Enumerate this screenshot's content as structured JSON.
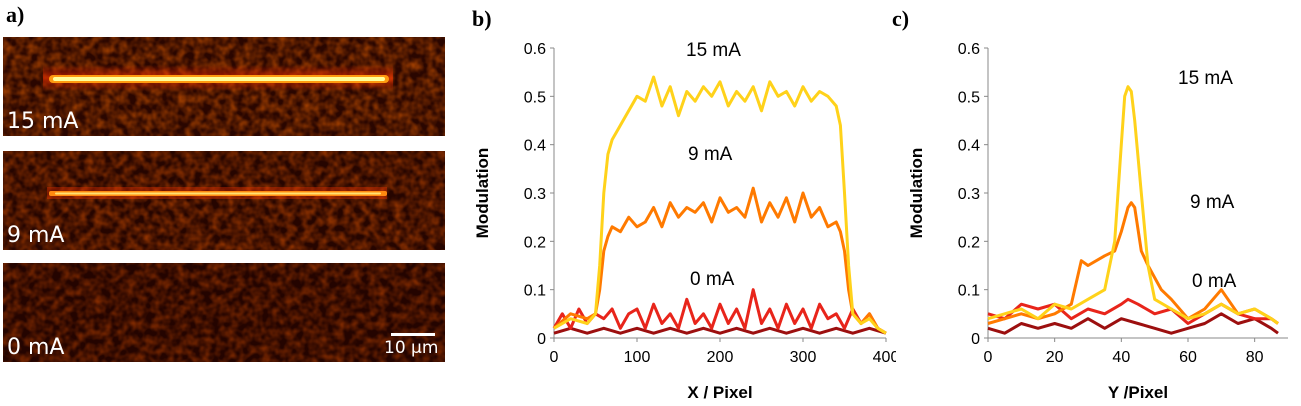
{
  "panel_a": {
    "letter": "a)",
    "images": [
      {
        "label": "15 mA",
        "intensity": 1.0
      },
      {
        "label": "9 mA",
        "intensity": 0.6
      },
      {
        "label": "0 mA",
        "intensity": 0.0
      }
    ],
    "scale_bar": "10 µm"
  },
  "chart_data": [
    {
      "letter": "b)",
      "type": "line",
      "xlabel": "X / Pixel",
      "ylabel": "Modulation",
      "xlim": [
        0,
        400
      ],
      "ylim": [
        0,
        0.6
      ],
      "xticks": [
        "0",
        "100",
        "200",
        "300",
        "400"
      ],
      "yticks": [
        "0",
        "0.1",
        "0.2",
        "0.3",
        "0.4",
        "0.5",
        "0.6"
      ],
      "grid": false,
      "annotations": [
        "15 mA",
        "9 mA",
        "0 mA"
      ],
      "series": [
        {
          "color": "#ffd21a",
          "x": [
            0,
            20,
            40,
            50,
            55,
            60,
            65,
            70,
            80,
            90,
            100,
            110,
            120,
            130,
            140,
            150,
            160,
            170,
            180,
            190,
            200,
            210,
            220,
            230,
            240,
            250,
            260,
            270,
            280,
            290,
            300,
            310,
            320,
            330,
            340,
            345,
            350,
            355,
            360,
            370,
            380,
            390,
            400
          ],
          "y": [
            0.02,
            0.04,
            0.03,
            0.05,
            0.15,
            0.3,
            0.38,
            0.41,
            0.44,
            0.47,
            0.5,
            0.49,
            0.54,
            0.48,
            0.52,
            0.46,
            0.51,
            0.49,
            0.52,
            0.5,
            0.53,
            0.48,
            0.51,
            0.49,
            0.52,
            0.47,
            0.53,
            0.5,
            0.51,
            0.48,
            0.52,
            0.49,
            0.51,
            0.5,
            0.48,
            0.44,
            0.3,
            0.15,
            0.05,
            0.03,
            0.04,
            0.02,
            0.01
          ]
        },
        {
          "color": "#ff7a00",
          "x": [
            0,
            20,
            40,
            50,
            55,
            60,
            65,
            70,
            80,
            90,
            100,
            110,
            120,
            130,
            140,
            150,
            160,
            170,
            180,
            190,
            200,
            210,
            220,
            230,
            240,
            250,
            260,
            270,
            280,
            290,
            300,
            310,
            320,
            330,
            340,
            345,
            350,
            355,
            360,
            370,
            380,
            390,
            400
          ],
          "y": [
            0.02,
            0.05,
            0.04,
            0.05,
            0.1,
            0.18,
            0.21,
            0.23,
            0.22,
            0.25,
            0.23,
            0.24,
            0.27,
            0.23,
            0.28,
            0.25,
            0.27,
            0.26,
            0.28,
            0.24,
            0.29,
            0.26,
            0.27,
            0.25,
            0.31,
            0.24,
            0.28,
            0.25,
            0.29,
            0.24,
            0.3,
            0.25,
            0.27,
            0.23,
            0.24,
            0.22,
            0.18,
            0.1,
            0.05,
            0.03,
            0.05,
            0.02,
            0.01
          ]
        },
        {
          "color": "#e8251b",
          "x": [
            0,
            10,
            20,
            30,
            40,
            50,
            60,
            70,
            80,
            90,
            100,
            110,
            120,
            130,
            140,
            150,
            160,
            170,
            180,
            190,
            200,
            210,
            220,
            230,
            240,
            250,
            260,
            270,
            280,
            290,
            300,
            310,
            320,
            330,
            340,
            350,
            360,
            370,
            380,
            390,
            400
          ],
          "y": [
            0.02,
            0.05,
            0.02,
            0.06,
            0.03,
            0.05,
            0.04,
            0.06,
            0.02,
            0.05,
            0.06,
            0.02,
            0.07,
            0.03,
            0.05,
            0.02,
            0.08,
            0.03,
            0.05,
            0.02,
            0.07,
            0.03,
            0.06,
            0.02,
            0.1,
            0.03,
            0.06,
            0.02,
            0.07,
            0.03,
            0.06,
            0.02,
            0.07,
            0.04,
            0.05,
            0.02,
            0.06,
            0.03,
            0.05,
            0.02,
            0.01
          ]
        },
        {
          "color": "#9c0f0f",
          "x": [
            0,
            20,
            40,
            60,
            80,
            100,
            120,
            140,
            160,
            180,
            200,
            220,
            240,
            260,
            280,
            300,
            320,
            340,
            360,
            380,
            400
          ],
          "y": [
            0.01,
            0.02,
            0.01,
            0.02,
            0.01,
            0.02,
            0.01,
            0.02,
            0.01,
            0.02,
            0.01,
            0.02,
            0.01,
            0.02,
            0.01,
            0.02,
            0.01,
            0.02,
            0.01,
            0.02,
            0.01
          ]
        }
      ]
    },
    {
      "letter": "c)",
      "type": "line",
      "xlabel": "Y /Pixel",
      "ylabel": "Modulation",
      "xlim": [
        0,
        90
      ],
      "ylim": [
        0,
        0.6
      ],
      "xticks": [
        "0",
        "20",
        "40",
        "60",
        "80"
      ],
      "yticks": [
        "0",
        "0.1",
        "0.2",
        "0.3",
        "0.4",
        "0.5",
        "0.6"
      ],
      "grid": false,
      "annotations": [
        "15 mA",
        "9 mA",
        "0 mA"
      ],
      "series": [
        {
          "color": "#ffd21a",
          "x": [
            0,
            5,
            10,
            15,
            20,
            25,
            30,
            35,
            38,
            40,
            41,
            42,
            43,
            44,
            46,
            48,
            50,
            55,
            60,
            65,
            70,
            75,
            80,
            85,
            87
          ],
          "y": [
            0.04,
            0.05,
            0.06,
            0.04,
            0.07,
            0.06,
            0.08,
            0.1,
            0.2,
            0.4,
            0.5,
            0.52,
            0.51,
            0.45,
            0.3,
            0.15,
            0.08,
            0.06,
            0.04,
            0.05,
            0.07,
            0.05,
            0.06,
            0.04,
            0.03
          ]
        },
        {
          "color": "#ff7a00",
          "x": [
            0,
            5,
            10,
            15,
            20,
            25,
            28,
            30,
            35,
            38,
            40,
            42,
            43,
            44,
            46,
            48,
            52,
            55,
            60,
            65,
            70,
            75,
            80,
            85,
            87
          ],
          "y": [
            0.03,
            0.04,
            0.05,
            0.04,
            0.05,
            0.07,
            0.16,
            0.15,
            0.17,
            0.18,
            0.22,
            0.27,
            0.28,
            0.27,
            0.18,
            0.15,
            0.1,
            0.08,
            0.04,
            0.06,
            0.1,
            0.05,
            0.06,
            0.04,
            0.03
          ]
        },
        {
          "color": "#e8251b",
          "x": [
            0,
            5,
            10,
            15,
            20,
            25,
            30,
            35,
            40,
            42,
            45,
            50,
            55,
            60,
            65,
            70,
            75,
            80,
            85,
            87
          ],
          "y": [
            0.05,
            0.04,
            0.07,
            0.06,
            0.07,
            0.04,
            0.06,
            0.05,
            0.07,
            0.08,
            0.07,
            0.05,
            0.06,
            0.03,
            0.05,
            0.07,
            0.05,
            0.04,
            0.04,
            0.03
          ]
        },
        {
          "color": "#9c0f0f",
          "x": [
            0,
            5,
            10,
            15,
            20,
            25,
            30,
            35,
            40,
            45,
            50,
            55,
            60,
            65,
            70,
            75,
            80,
            85,
            87
          ],
          "y": [
            0.02,
            0.01,
            0.03,
            0.02,
            0.03,
            0.02,
            0.04,
            0.02,
            0.04,
            0.03,
            0.02,
            0.01,
            0.02,
            0.03,
            0.05,
            0.03,
            0.04,
            0.02,
            0.01
          ]
        }
      ]
    }
  ]
}
